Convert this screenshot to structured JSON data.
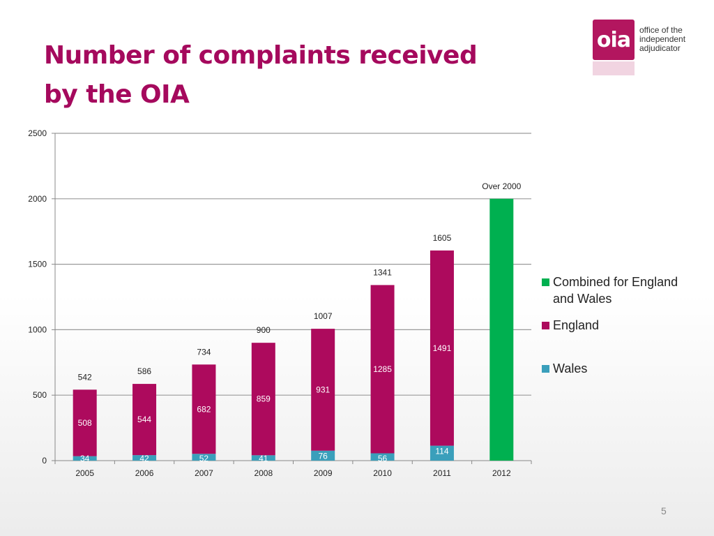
{
  "title_line1": "Number of complaints received",
  "title_line2": "by the OIA",
  "logo": {
    "mark": "oia",
    "line1": "office of the",
    "line2": "independent",
    "line3": "adjudicator"
  },
  "chart_data": {
    "type": "bar",
    "stacked": true,
    "title": "Number of complaints received by the OIA",
    "xlabel": "",
    "ylabel": "",
    "ylim": [
      0,
      2500
    ],
    "yticks": [
      0,
      500,
      1000,
      1500,
      2000,
      2500
    ],
    "grid": true,
    "legend_position": "right",
    "categories": [
      "2005",
      "2006",
      "2007",
      "2008",
      "2009",
      "2010",
      "2011",
      "2012"
    ],
    "series": [
      {
        "name": "Wales",
        "color": "#3a9fbb",
        "values": [
          34,
          42,
          52,
          41,
          76,
          56,
          114,
          null
        ]
      },
      {
        "name": "England",
        "color": "#ad0a5d",
        "values": [
          508,
          544,
          682,
          859,
          931,
          1285,
          1491,
          null
        ]
      },
      {
        "name": "Combined for England and Wales",
        "color": "#00b050",
        "values": [
          null,
          null,
          null,
          null,
          null,
          null,
          null,
          2000
        ]
      }
    ],
    "wales_labels": [
      "34",
      "42",
      "52",
      "41",
      "76",
      "56",
      "114",
      ""
    ],
    "england_labels": [
      "508",
      "544",
      "682",
      "859",
      "931",
      "1285",
      "1491",
      ""
    ],
    "total_labels": [
      "542",
      "586",
      "734",
      "900",
      "1007",
      "1341",
      "1605",
      "Over 2000"
    ]
  },
  "legend": [
    {
      "label": "Combined for England and Wales",
      "color": "#00b050"
    },
    {
      "label": "England",
      "color": "#ad0a5d"
    },
    {
      "label": "Wales",
      "color": "#3a9fbb"
    }
  ],
  "page_number": "5"
}
